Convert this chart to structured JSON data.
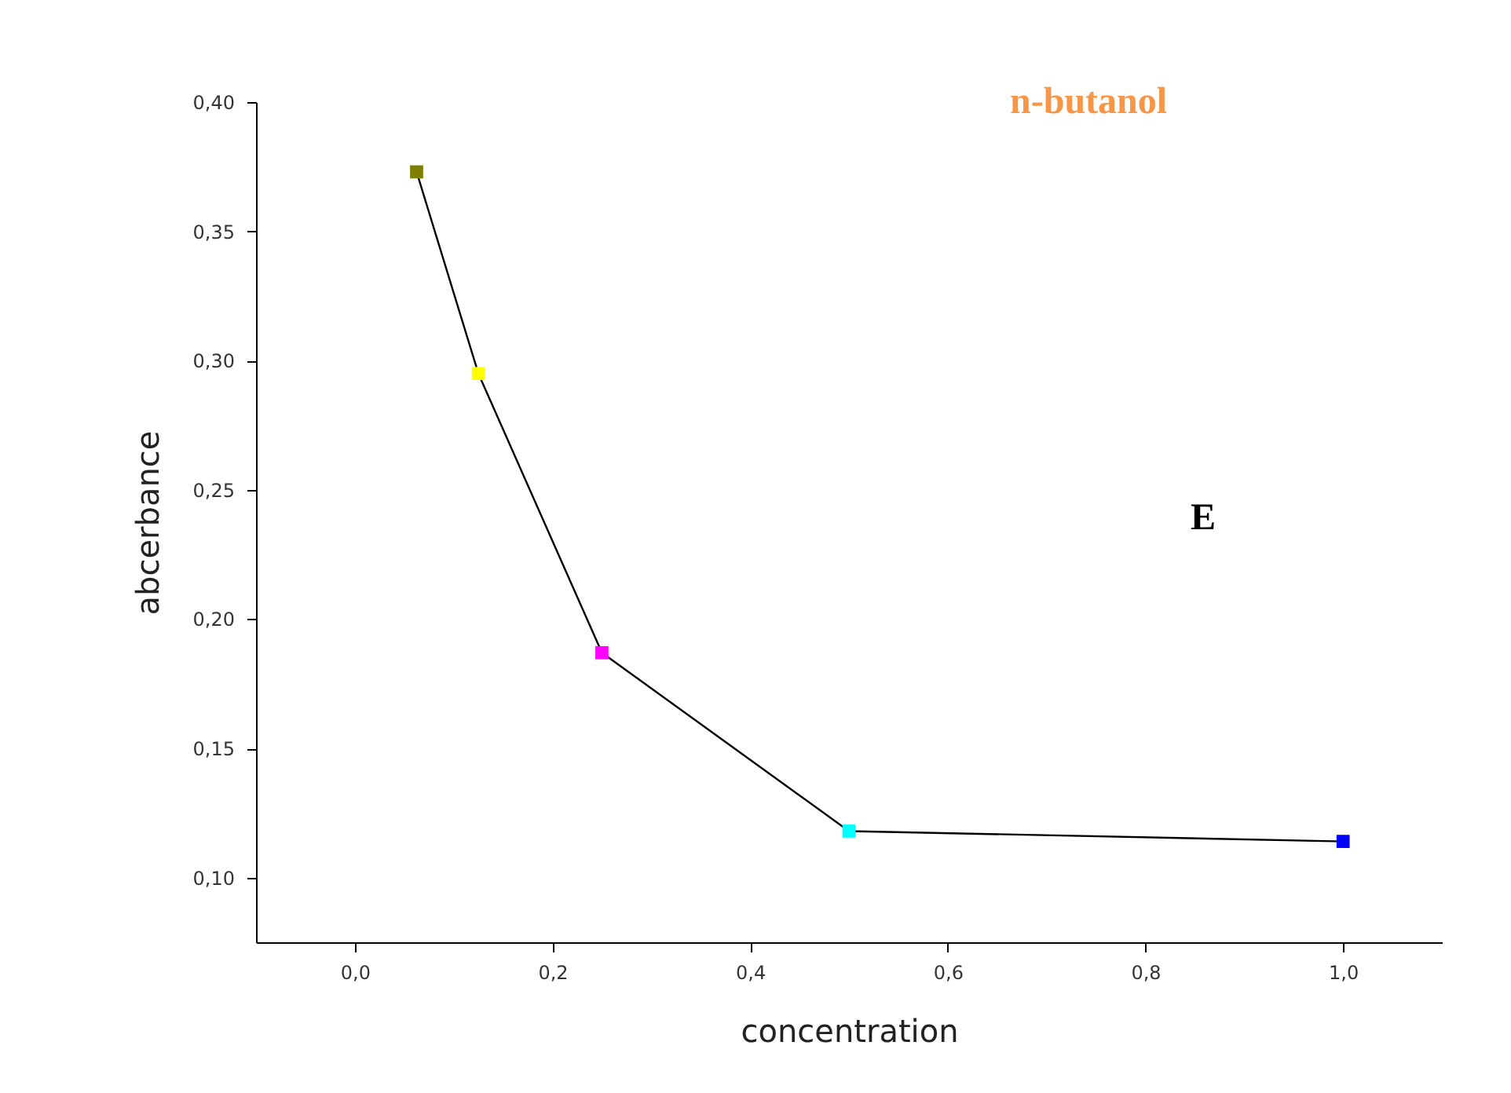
{
  "chart_data": {
    "type": "line",
    "title": "n-butanol",
    "xlabel": "concentration",
    "ylabel": "abcerbance",
    "annotations": [
      "E"
    ],
    "x": [
      0.0625,
      0.125,
      0.25,
      0.5,
      1.0
    ],
    "values": [
      0.373,
      0.295,
      0.187,
      0.118,
      0.114
    ],
    "color": "#000000",
    "colors": [
      "#808000",
      "#ffff00",
      "#ff00ff",
      "#00ffff",
      "#0000ff"
    ],
    "marker": "square",
    "xlim": [
      -0.1,
      1.1
    ],
    "xticks": [
      {
        "value": 0,
        "label": "0,0"
      },
      {
        "value": 0.2,
        "label": "0,2"
      },
      {
        "value": 0.4,
        "label": "0,4"
      },
      {
        "value": 0.6,
        "label": "0,6"
      },
      {
        "value": 0.8,
        "label": "0,8"
      },
      {
        "value": 1,
        "label": "1,0"
      }
    ],
    "ylim": [
      0.075,
      0.4
    ],
    "yticks": [
      {
        "value": 0.1,
        "label": "0,10"
      },
      {
        "value": 0.15,
        "label": "0,15"
      },
      {
        "value": 0.2,
        "label": "0,20"
      },
      {
        "value": 0.25,
        "label": "0,25"
      },
      {
        "value": 0.3,
        "label": "0,30"
      },
      {
        "value": 0.35,
        "label": "0,35"
      },
      {
        "value": 0.4,
        "label": "0,40"
      }
    ],
    "grid": false
  }
}
